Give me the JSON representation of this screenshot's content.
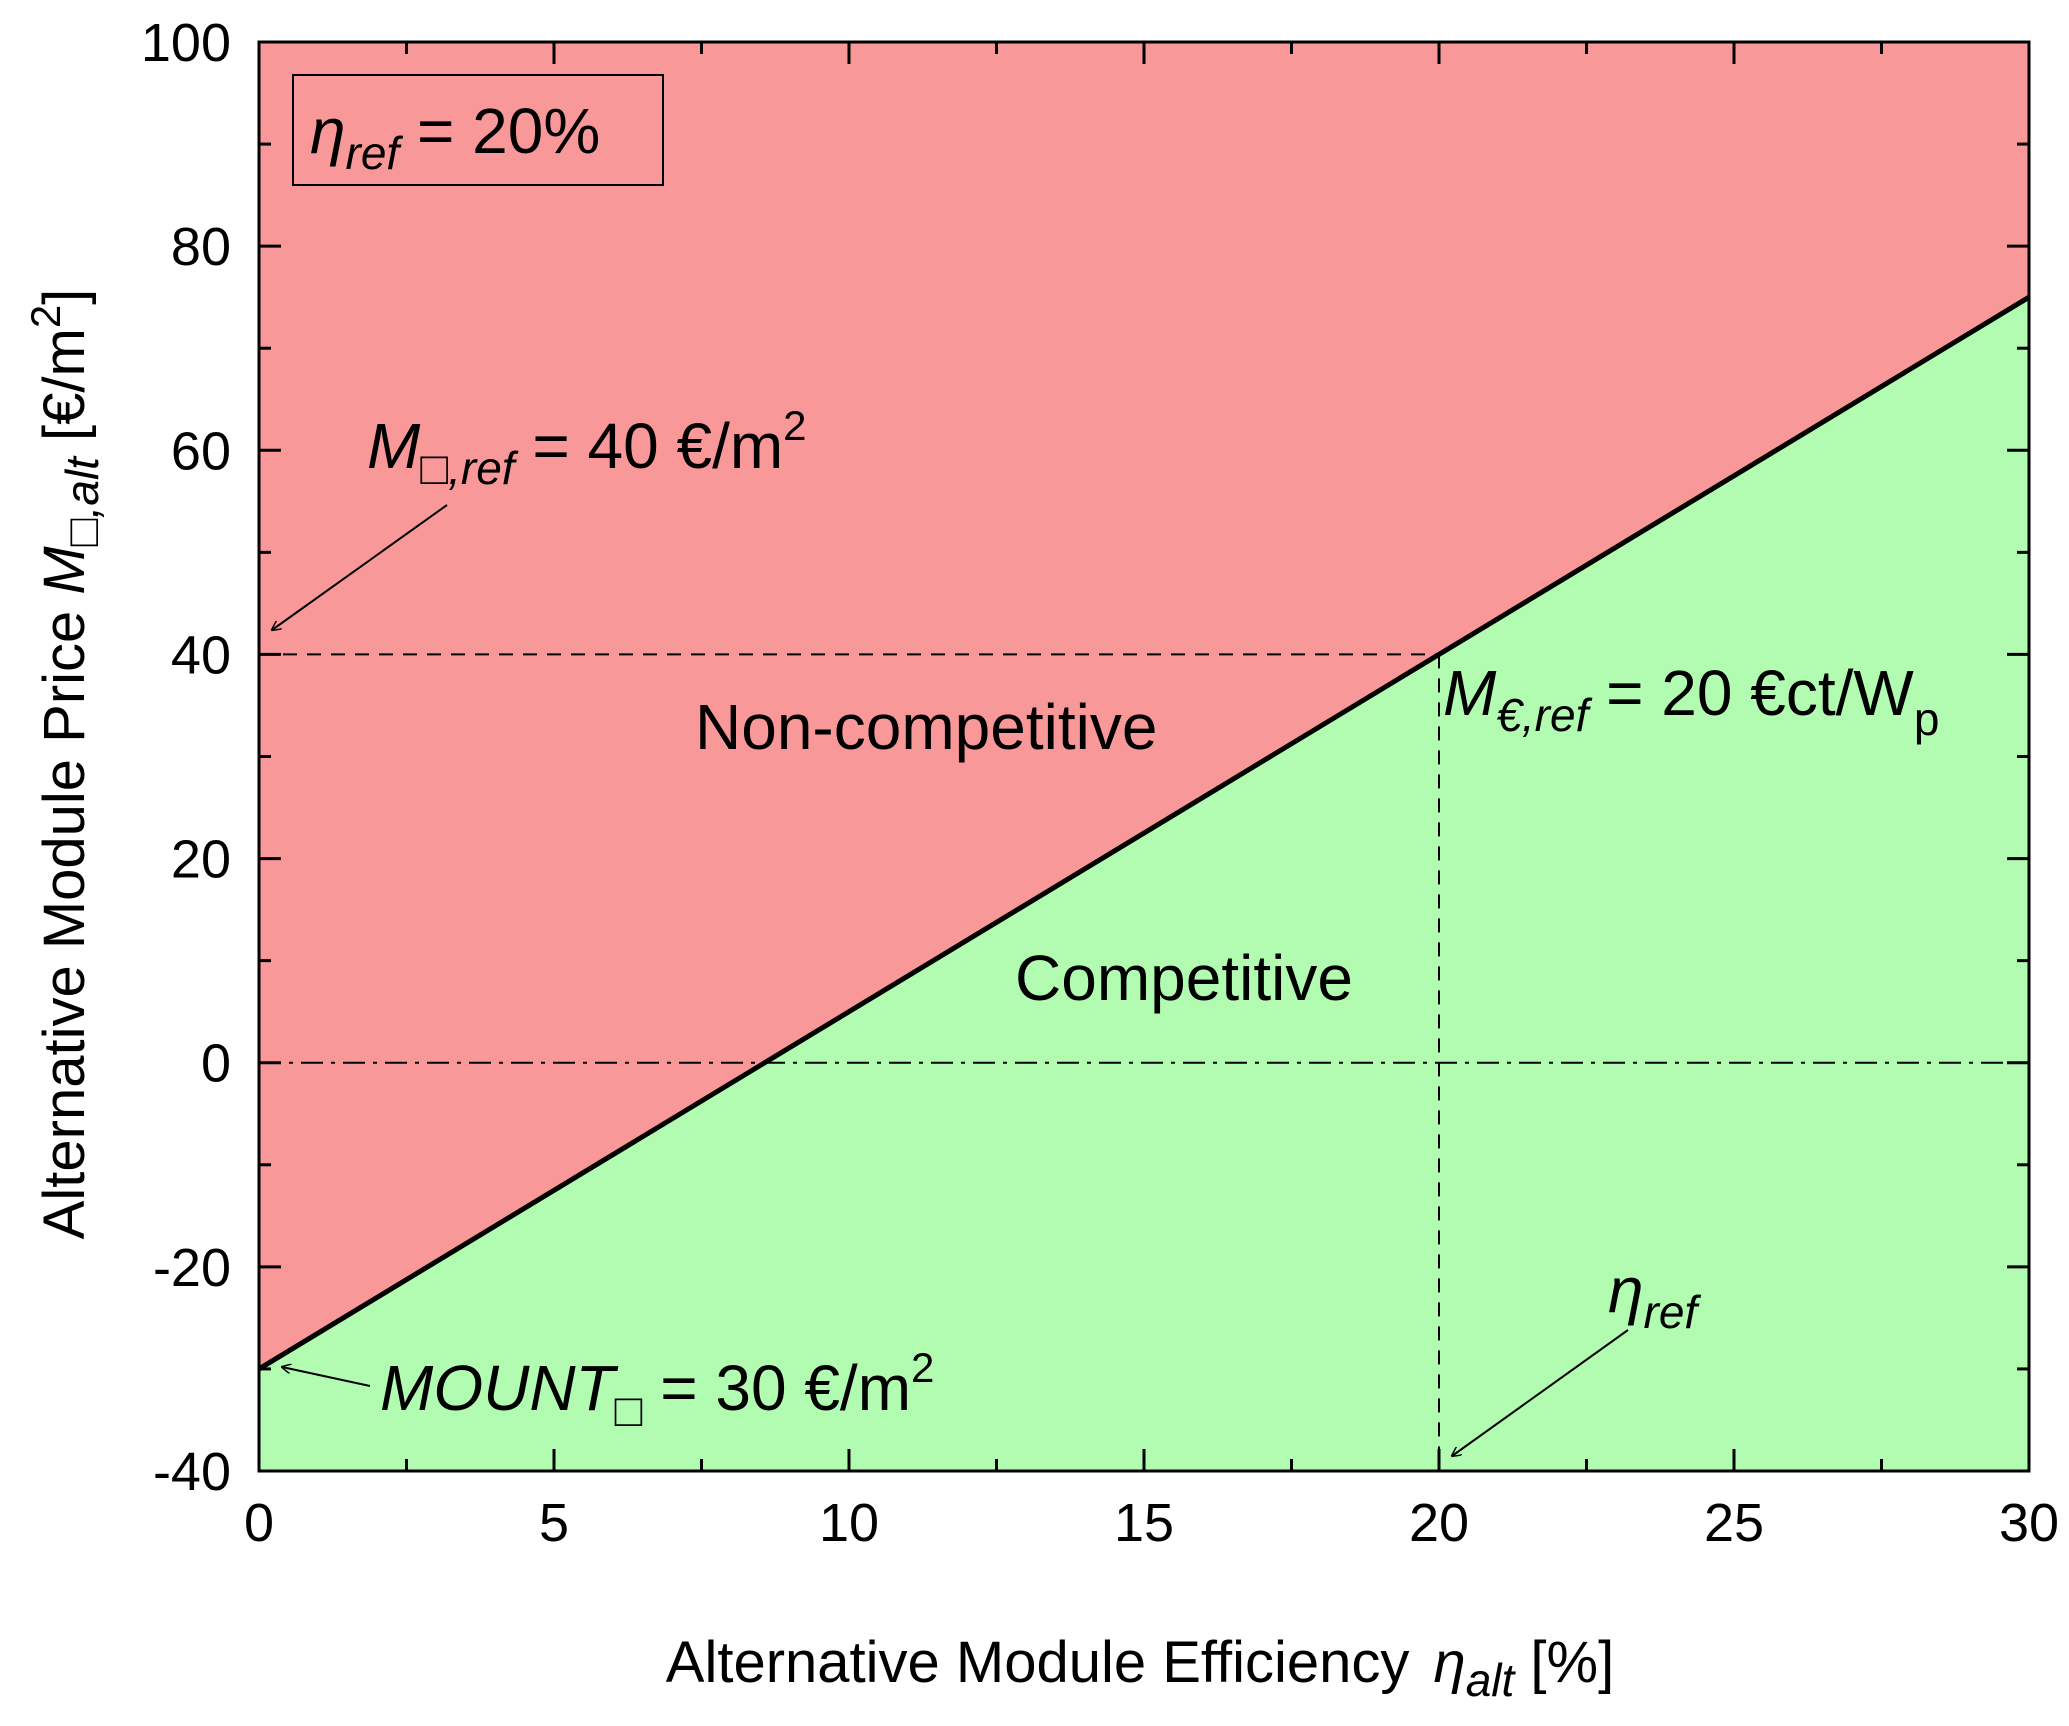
{
  "chart_data": {
    "type": "line",
    "xlabel": {
      "main": "Alternative Module Efficiency ",
      "sym": "η",
      "sub": "alt",
      "unit": " [%]"
    },
    "ylabel": {
      "main": "Alternative Module Price ",
      "sym": "M",
      "sub": "□,alt",
      "unit": " [€/m",
      "sup": "2",
      "close": "]"
    },
    "xlim": [
      0,
      30
    ],
    "ylim": [
      -40,
      100
    ],
    "x_ticks": [
      0,
      5,
      10,
      15,
      20,
      25,
      30
    ],
    "y_ticks": [
      -40,
      -20,
      0,
      20,
      40,
      60,
      80,
      100
    ],
    "series": [
      {
        "x": [
          0,
          30
        ],
        "y": [
          -30,
          75
        ]
      }
    ],
    "region_colors": {
      "above": "#f99898",
      "below": "#b2fcb2"
    },
    "region_labels": {
      "above": "Non-competitive",
      "below": "Competitive"
    },
    "reference_lines": {
      "horizontal_dashed_y": 40,
      "vertical_dashed_x": 20,
      "horizontal_dashdot_y": 0
    },
    "annotations": {
      "eta_ref_box": {
        "sym": "η",
        "sub": "ref",
        "text": " = 20%"
      },
      "m_area_ref": {
        "sym": "M",
        "sub": "□,ref",
        "text": " = 40 €/m",
        "sup": "2"
      },
      "m_euro_ref": {
        "sym": "M",
        "sub": "€,ref",
        "text": " = 20 €ct/W",
        "sub2": "p"
      },
      "mount": {
        "sym": "MOUNT",
        "sub": "□",
        "text": " = 30 €/m",
        "sup": "2"
      },
      "eta_ref_arrow": {
        "sym": "η",
        "sub": "ref"
      }
    }
  }
}
